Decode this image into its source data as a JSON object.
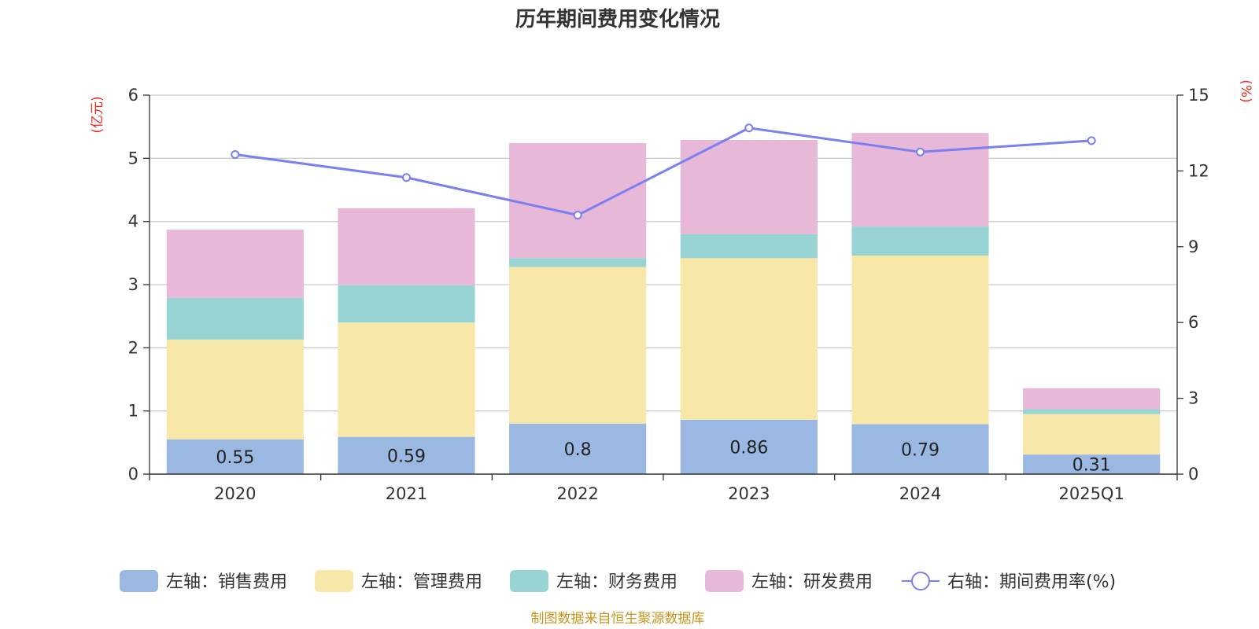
{
  "chart_data": {
    "type": "bar",
    "title": "历年期间费用变化情况",
    "left_unit": "(亿元)",
    "right_unit": "(%)",
    "categories": [
      "2020",
      "2021",
      "2022",
      "2023",
      "2024",
      "2025Q1"
    ],
    "ylim": [
      0,
      6
    ],
    "y_ticks": [
      "0",
      "1",
      "2",
      "3",
      "4",
      "5",
      "6"
    ],
    "y2lim": [
      0,
      15
    ],
    "y2_ticks": [
      "0",
      "3",
      "6",
      "9",
      "12",
      "15"
    ],
    "series": [
      {
        "name": "左轴：销售费用",
        "axis": "left",
        "color": "#9bb8e2",
        "values": [
          0.55,
          0.59,
          0.8,
          0.86,
          0.79,
          0.31
        ],
        "labels": [
          "0.55",
          "0.59",
          "0.8",
          "0.86",
          "0.79",
          "0.31"
        ]
      },
      {
        "name": "左轴：管理费用",
        "axis": "left",
        "color": "#f7e7a8",
        "values": [
          1.58,
          1.81,
          2.48,
          2.56,
          2.67,
          0.64
        ]
      },
      {
        "name": "左轴：财务费用",
        "axis": "left",
        "color": "#98d4d4",
        "values": [
          0.66,
          0.59,
          0.14,
          0.38,
          0.46,
          0.08
        ]
      },
      {
        "name": "左轴：研发费用",
        "axis": "left",
        "color": "#e8b8d8",
        "values": [
          1.08,
          1.22,
          1.82,
          1.49,
          1.48,
          0.33
        ]
      },
      {
        "name": "右轴：期间费用率(%)",
        "axis": "right",
        "type": "line",
        "color": "#7b7ff0",
        "values": [
          12.65,
          11.74,
          10.25,
          13.7,
          12.75,
          13.2
        ]
      }
    ],
    "source": "制图数据来自恒生聚源数据库"
  }
}
